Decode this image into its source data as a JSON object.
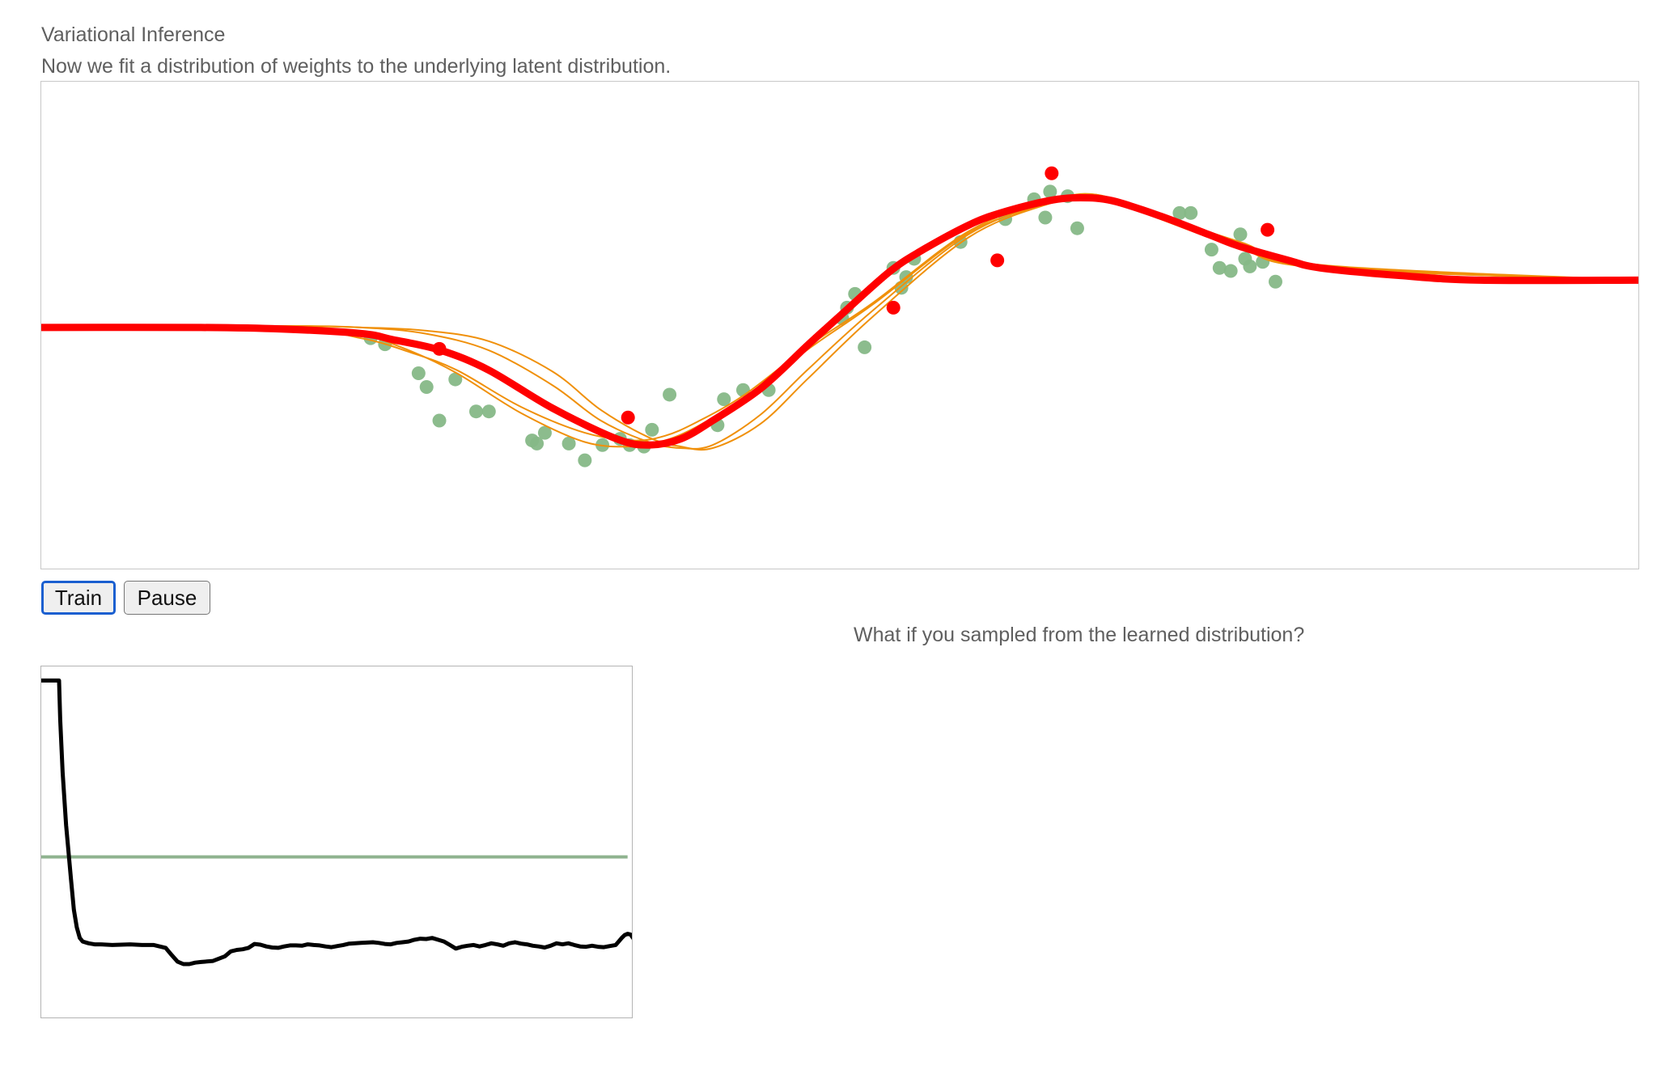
{
  "header": {
    "title": "Variational Inference",
    "subtitle": "Now we fit a distribution of weights to the underlying latent distribution."
  },
  "controls": {
    "train_label": "Train",
    "pause_label": "Pause"
  },
  "sampling": {
    "question": "What if you sampled from the learned distribution?"
  },
  "colors": {
    "mean_curve": "#ff0000",
    "sample_curves": "#f0900a",
    "train_points": "#86b887",
    "test_points": "#ff0000",
    "loss_curve": "#000000",
    "baseline": "#8fb38f"
  },
  "chart_data": [
    {
      "type": "scatter",
      "title": "",
      "xlabel": "",
      "ylabel": "",
      "xlim": [
        0,
        100
      ],
      "ylim": [
        -1.6,
        1.6
      ],
      "grid": false,
      "mean_curve": {
        "x": [
          0,
          10,
          15,
          20,
          22,
          25,
          28,
          32,
          36,
          38,
          40,
          42,
          45,
          48,
          50,
          53,
          55,
          58,
          60,
          63,
          65,
          67,
          70,
          73,
          75,
          78,
          80,
          85,
          90,
          100
        ],
        "y": [
          -0.01,
          -0.01,
          -0.02,
          -0.05,
          -0.09,
          -0.16,
          -0.29,
          -0.54,
          -0.74,
          -0.78,
          -0.74,
          -0.62,
          -0.41,
          -0.12,
          0.07,
          0.35,
          0.49,
          0.66,
          0.74,
          0.82,
          0.84,
          0.82,
          0.72,
          0.6,
          0.52,
          0.43,
          0.38,
          0.33,
          0.3,
          0.3
        ]
      },
      "sample_curves": [
        {
          "x": [
            0,
            15,
            20,
            23,
            26,
            30,
            34,
            37,
            39,
            41,
            44,
            48,
            52,
            58,
            63,
            66,
            70,
            75,
            80,
            100
          ],
          "y": [
            0,
            -0.01,
            -0.08,
            -0.17,
            -0.29,
            -0.53,
            -0.7,
            -0.75,
            -0.72,
            -0.63,
            -0.45,
            -0.13,
            0.15,
            0.62,
            0.82,
            0.84,
            0.71,
            0.52,
            0.38,
            0.3
          ]
        },
        {
          "x": [
            0,
            15,
            20,
            23,
            26,
            30,
            34,
            37,
            39,
            41,
            44,
            48,
            52,
            58,
            63,
            66,
            70,
            75,
            80,
            100
          ],
          "y": [
            0,
            -0.01,
            -0.06,
            -0.16,
            -0.31,
            -0.57,
            -0.76,
            -0.79,
            -0.75,
            -0.66,
            -0.47,
            -0.15,
            0.14,
            0.61,
            0.8,
            0.85,
            0.72,
            0.55,
            0.4,
            0.3
          ]
        },
        {
          "x": [
            0,
            15,
            20,
            24,
            28,
            32,
            35,
            38,
            40,
            42,
            45,
            48,
            52,
            58,
            63,
            66,
            70,
            75,
            80,
            100
          ],
          "y": [
            0,
            0,
            -0.01,
            -0.05,
            -0.16,
            -0.39,
            -0.62,
            -0.76,
            -0.8,
            -0.78,
            -0.58,
            -0.28,
            0.1,
            0.6,
            0.81,
            0.86,
            0.7,
            0.51,
            0.38,
            0.3
          ]
        },
        {
          "x": [
            0,
            15,
            20,
            24,
            28,
            32,
            35,
            38,
            40,
            42,
            45,
            48,
            52,
            58,
            63,
            66,
            70,
            75,
            80,
            100
          ],
          "y": [
            0,
            0,
            -0.01,
            -0.03,
            -0.1,
            -0.3,
            -0.55,
            -0.73,
            -0.79,
            -0.8,
            -0.64,
            -0.34,
            0.06,
            0.58,
            0.8,
            0.86,
            0.71,
            0.52,
            0.39,
            0.3
          ]
        }
      ],
      "train_points": {
        "x": [
          20.6,
          21.5,
          23.6,
          24.1,
          24.9,
          25.9,
          27.2,
          28.0,
          30.7,
          31.0,
          31.5,
          33.0,
          34.0,
          35.1,
          36.2,
          36.8,
          37.7,
          38.2,
          39.3,
          42.3,
          42.7,
          43.9,
          45.5,
          50.1,
          50.4,
          50.9,
          51.5,
          53.3,
          53.8,
          54.1,
          54.6,
          57.5,
          60.3,
          62.1,
          62.8,
          63.1,
          64.2,
          64.8,
          71.2,
          71.9,
          73.2,
          73.7,
          74.4,
          75.0,
          75.3,
          75.6,
          76.4,
          77.2
        ],
        "y": [
          -0.08,
          -0.12,
          -0.31,
          -0.4,
          -0.62,
          -0.35,
          -0.56,
          -0.56,
          -0.75,
          -0.77,
          -0.7,
          -0.77,
          -0.88,
          -0.78,
          -0.74,
          -0.78,
          -0.79,
          -0.68,
          -0.45,
          -0.65,
          -0.48,
          -0.42,
          -0.42,
          0.05,
          0.12,
          0.21,
          -0.14,
          0.38,
          0.25,
          0.32,
          0.44,
          0.55,
          0.7,
          0.83,
          0.71,
          0.88,
          0.85,
          0.64,
          0.74,
          0.74,
          0.5,
          0.38,
          0.36,
          0.6,
          0.44,
          0.39,
          0.42,
          0.29
        ]
      },
      "test_points": {
        "x": [
          24.9,
          36.7,
          53.3,
          59.8,
          63.2,
          76.7
        ],
        "y": [
          -0.15,
          -0.6,
          0.12,
          0.43,
          1.0,
          0.63
        ]
      }
    },
    {
      "type": "line",
      "title": "",
      "xlabel": "",
      "ylabel": "",
      "xlim": [
        0,
        100
      ],
      "ylim": [
        0,
        10
      ],
      "grid": false,
      "baseline": 4.6,
      "loss": {
        "x": [
          0,
          3.0,
          3.2,
          3.6,
          4.2,
          5.0,
          5.5,
          6.0,
          6.5,
          7.0,
          8.0,
          9.0,
          10,
          12,
          15,
          17,
          19,
          21,
          22,
          23,
          24,
          25,
          26,
          27,
          29,
          31,
          32,
          33,
          34,
          35,
          36,
          37,
          38,
          39,
          40,
          41,
          42,
          43,
          44,
          45,
          46,
          47,
          48,
          49,
          50,
          51,
          52,
          53,
          54,
          55,
          56,
          57,
          58,
          59,
          60,
          61,
          62,
          63,
          64,
          65,
          66,
          67,
          68,
          69,
          70,
          71,
          72,
          73,
          74,
          75,
          76,
          77,
          78,
          79,
          80,
          81,
          82,
          83,
          84,
          85,
          86,
          87,
          88,
          89,
          90,
          91,
          92,
          93,
          94,
          95,
          96,
          97,
          98,
          98.5,
          99,
          99.5,
          100
        ],
        "y": [
          9.6,
          9.6,
          8.5,
          7.0,
          5.5,
          4.0,
          3.1,
          2.6,
          2.3,
          2.2,
          2.15,
          2.12,
          2.12,
          2.1,
          2.12,
          2.1,
          2.1,
          2.02,
          1.82,
          1.63,
          1.56,
          1.56,
          1.6,
          1.62,
          1.65,
          1.78,
          1.92,
          1.96,
          1.98,
          2.02,
          2.13,
          2.11,
          2.06,
          2.03,
          2.02,
          2.06,
          2.09,
          2.09,
          2.08,
          2.12,
          2.1,
          2.09,
          2.06,
          2.04,
          2.07,
          2.1,
          2.14,
          2.15,
          2.16,
          2.17,
          2.18,
          2.16,
          2.13,
          2.12,
          2.16,
          2.18,
          2.2,
          2.25,
          2.28,
          2.27,
          2.3,
          2.25,
          2.2,
          2.1,
          2.0,
          2.05,
          2.08,
          2.1,
          2.06,
          2.1,
          2.15,
          2.12,
          2.08,
          2.15,
          2.18,
          2.14,
          2.12,
          2.08,
          2.06,
          2.03,
          2.08,
          2.15,
          2.12,
          2.15,
          2.1,
          2.06,
          2.05,
          2.08,
          2.05,
          2.04,
          2.07,
          2.1,
          2.3,
          2.38,
          2.42,
          2.4,
          2.28
        ]
      }
    }
  ]
}
